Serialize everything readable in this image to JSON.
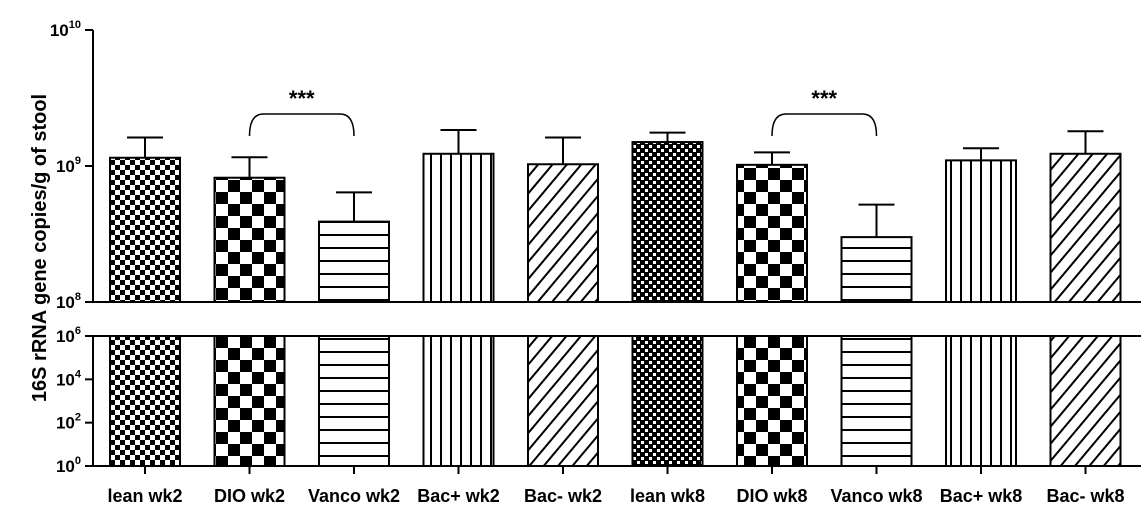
{
  "chart_data": {
    "type": "bar",
    "ylabel": "16S rRNA gene copies/g of stool",
    "yscale": "log10, broken axis",
    "upper_panel": {
      "ylim": [
        100000000,
        10000000000
      ],
      "ticks": [
        {
          "value": 100000000,
          "base": "10",
          "exp": "8"
        },
        {
          "value": 1000000000,
          "base": "10",
          "exp": "9"
        },
        {
          "value": 10000000000,
          "base": "10",
          "exp": "10"
        }
      ]
    },
    "lower_panel": {
      "ylim": [
        1,
        1000000
      ],
      "ticks": [
        {
          "value": 1,
          "base": "10",
          "exp": "0"
        },
        {
          "value": 100,
          "base": "10",
          "exp": "2"
        },
        {
          "value": 10000,
          "base": "10",
          "exp": "4"
        },
        {
          "value": 1000000,
          "base": "10",
          "exp": "6"
        }
      ]
    },
    "categories": [
      "lean wk2",
      "DIO wk2",
      "Vanco wk2",
      "Bac+ wk2",
      "Bac- wk2",
      "lean wk8",
      "DIO wk8",
      "Vanco wk8",
      "Bac+ wk8",
      "Bac- wk8"
    ],
    "patterns": [
      "checker-small",
      "checker-large",
      "horizontal",
      "vertical",
      "diagonal",
      "dots",
      "checker-large",
      "horizontal",
      "vertical",
      "diagonal"
    ],
    "values": [
      1150000000,
      820000000,
      390000000,
      1230000000,
      1030000000,
      1500000000,
      1020000000,
      300000000,
      1100000000,
      1230000000
    ],
    "error_upper": [
      1620000000,
      1160000000,
      640000000,
      1840000000,
      1620000000,
      1760000000,
      1260000000,
      520000000,
      1350000000,
      1800000000
    ],
    "significance": [
      {
        "from": "DIO wk2",
        "to": "Vanco wk2",
        "label": "***"
      },
      {
        "from": "DIO wk8",
        "to": "Vanco wk8",
        "label": "***"
      }
    ],
    "grid": false,
    "legend": "none"
  }
}
